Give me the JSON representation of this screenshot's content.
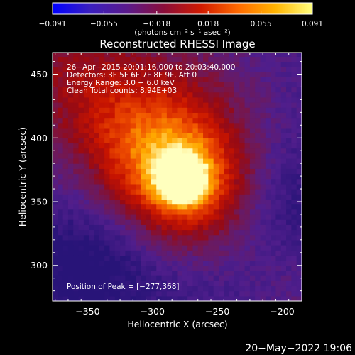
{
  "colorbar": {
    "ticks": [
      "−0.091",
      "−0.055",
      "−0.018",
      "0.018",
      "0.055",
      "0.091"
    ],
    "tick_values": [
      -0.091,
      -0.055,
      -0.018,
      0.018,
      0.055,
      0.091
    ],
    "units": "(photons cm⁻² s⁻¹ asec⁻²)",
    "colors": [
      "#0000ff",
      "#3a1fbf",
      "#5a1a8c",
      "#8a0e3a",
      "#d11a00",
      "#ff6a00",
      "#ffb400",
      "#ffff80"
    ]
  },
  "chart_data": {
    "type": "heatmap",
    "title": "Reconstructed RHESSI Image",
    "xlabel": "Heliocentric X (arcsec)",
    "ylabel": "Heliocentric Y (arcsec)",
    "xlim": [
      -377,
      -185
    ],
    "ylim": [
      272,
      467
    ],
    "xticks": [
      -350,
      -300,
      -250,
      -200
    ],
    "xtick_labels": [
      "−350",
      "−300",
      "−250",
      "−200"
    ],
    "yticks": [
      300,
      350,
      400,
      450
    ],
    "ytick_labels": [
      "300",
      "350",
      "400",
      "450"
    ],
    "peak": [
      -277,
      368
    ],
    "value_range": [
      -0.091,
      0.091
    ],
    "info_lines": [
      "26−Apr−2015 20:01:16.000 to 20:03:40.000",
      "Detectors: 3F 5F 6F 7F 8F 9F, Att 0",
      "Energy Range: 3.0 − 6.0 keV",
      "Clean     Total counts: 8.94E+03"
    ],
    "peak_label": "Position of Peak = [−277,368]"
  },
  "footer": {
    "timestamp": "20−May−2022 19:06"
  }
}
